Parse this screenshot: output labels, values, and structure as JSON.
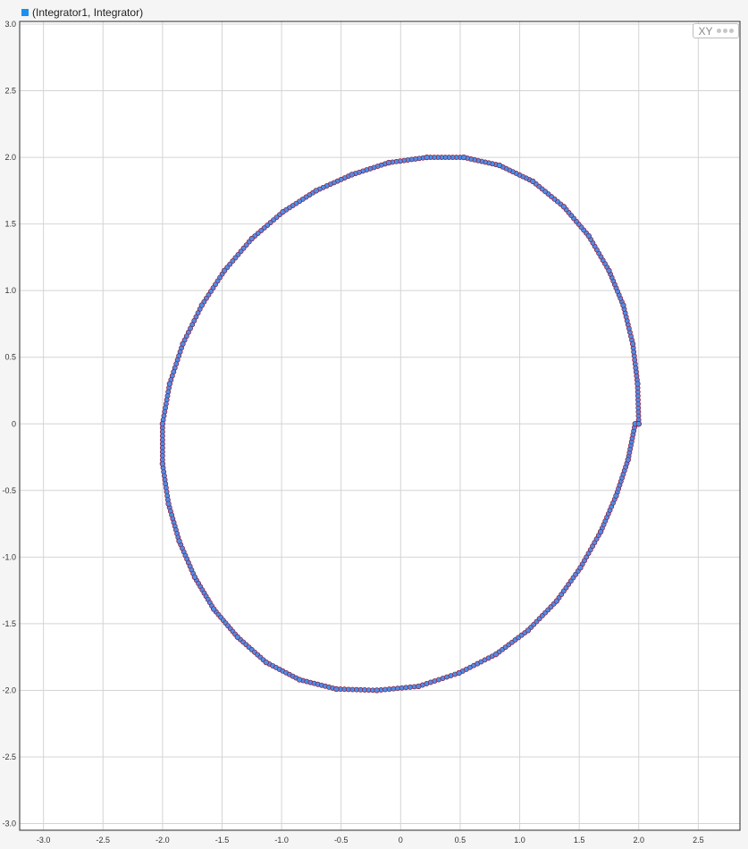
{
  "legend": {
    "label": "(Integrator1, Integrator)",
    "color": "#1a90f0"
  },
  "badge": {
    "label": "XY",
    "icon": "more-dots-icon"
  },
  "chart_data": {
    "type": "scatter",
    "title": "",
    "xlabel": "",
    "ylabel": "",
    "xlim": [
      -3.2,
      2.85
    ],
    "ylim": [
      -3.05,
      3.02
    ],
    "grid": true,
    "x_ticks": [
      "-3.0",
      "-2.5",
      "-2.0",
      "-1.5",
      "-1.0",
      "-0.5",
      "0",
      "0.5",
      "1.0",
      "1.5",
      "2.0",
      "2.5"
    ],
    "y_ticks": [
      "3.0",
      "2.5",
      "2.0",
      "1.5",
      "1.0",
      "0.5",
      "0",
      "-0.5",
      "-1.0",
      "-1.5",
      "-2.0",
      "-2.5",
      "-3.0"
    ],
    "marker_fill": "#4d8fe8",
    "marker_edge": "#8b1a3a",
    "series": [
      {
        "name": "(Integrator1, Integrator)",
        "x": [
          2.0,
          1.99,
          1.95,
          1.87,
          1.75,
          1.58,
          1.37,
          1.11,
          0.83,
          0.53,
          0.22,
          -0.1,
          -0.41,
          -0.71,
          -0.99,
          -1.25,
          -1.48,
          -1.67,
          -1.83,
          -1.94,
          -2.0,
          -2.0,
          -1.95,
          -1.86,
          -1.73,
          -1.57,
          -1.37,
          -1.13,
          -0.85,
          -0.54,
          -0.2,
          0.15,
          0.49,
          0.8,
          1.07,
          1.31,
          1.51,
          1.68,
          1.81,
          1.91,
          1.97,
          2.0
        ],
        "y": [
          0.0,
          0.3,
          0.6,
          0.89,
          1.15,
          1.41,
          1.63,
          1.82,
          1.94,
          2.0,
          2.0,
          1.96,
          1.87,
          1.75,
          1.59,
          1.39,
          1.15,
          0.89,
          0.6,
          0.3,
          0.0,
          -0.3,
          -0.6,
          -0.88,
          -1.15,
          -1.39,
          -1.6,
          -1.79,
          -1.92,
          -1.99,
          -2.0,
          -1.97,
          -1.87,
          -1.73,
          -1.55,
          -1.33,
          -1.08,
          -0.81,
          -0.54,
          -0.27,
          0.0,
          0.0
        ]
      }
    ]
  }
}
